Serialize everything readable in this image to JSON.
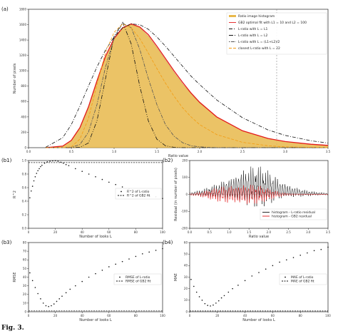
{
  "chart_data": [
    {
      "panel": "(a)",
      "type": "area",
      "xlabel": "Ratio value",
      "ylabel": "Number of pixels",
      "xlim": [
        0.0,
        3.5
      ],
      "ylim": [
        0,
        1800
      ],
      "xticks": [
        "0.0",
        "0.5",
        "1.0",
        "1.5",
        "2.0",
        "2.5",
        "3.0",
        "3.5"
      ],
      "yticks": [
        "0",
        "200",
        "400",
        "600",
        "800",
        "1000",
        "1200",
        "1400",
        "1600",
        "1800"
      ],
      "legend_position": "top-right",
      "vline_x": 2.9,
      "x": [
        0.2,
        0.4,
        0.5,
        0.6,
        0.7,
        0.8,
        0.9,
        1.0,
        1.1,
        1.2,
        1.3,
        1.4,
        1.5,
        1.6,
        1.7,
        1.8,
        1.9,
        2.0,
        2.2,
        2.5,
        2.8,
        3.0,
        3.3,
        3.5
      ],
      "series": [
        {
          "name": "Ratio image histogram",
          "role": "histogram",
          "color": "#e8b84b",
          "values": [
            0,
            20,
            90,
            250,
            520,
            860,
            1180,
            1420,
            1560,
            1600,
            1560,
            1450,
            1300,
            1140,
            980,
            830,
            700,
            580,
            400,
            220,
            120,
            80,
            45,
            30
          ]
        },
        {
          "name": "GB2 optimal fit with L1 = 10 and L2 = 100",
          "color": "#e31a1c",
          "dash": "solid",
          "values": [
            0,
            20,
            95,
            260,
            530,
            870,
            1190,
            1420,
            1560,
            1610,
            1570,
            1470,
            1320,
            1160,
            1000,
            850,
            710,
            590,
            400,
            220,
            120,
            80,
            45,
            30
          ]
        },
        {
          "name": "L-ratio with L = L1",
          "color": "#111111",
          "dash": "dashdot",
          "values": [
            5,
            130,
            300,
            540,
            800,
            1050,
            1270,
            1440,
            1560,
            1610,
            1600,
            1540,
            1440,
            1320,
            1190,
            1060,
            930,
            820,
            620,
            390,
            230,
            160,
            90,
            60
          ]
        },
        {
          "name": "L-ratio with L = L2",
          "color": "#111111",
          "dash": "dashdot2",
          "values": [
            0,
            0,
            0,
            5,
            60,
            350,
            900,
            1450,
            1630,
            1350,
            800,
            350,
            110,
            25,
            5,
            0,
            0,
            0,
            0,
            0,
            0,
            0,
            0,
            0
          ]
        },
        {
          "name": "L-ratio with L = (L1+L2)/2",
          "color": "#555555",
          "dash": "dotdash",
          "values": [
            0,
            0,
            5,
            40,
            200,
            560,
            1050,
            1420,
            1620,
            1560,
            1280,
            900,
            560,
            300,
            150,
            65,
            25,
            10,
            0,
            0,
            0,
            0,
            0,
            0
          ]
        },
        {
          "name": "closest L-ratio with L = 22",
          "color": "#f39c12",
          "dash": "dash",
          "values": [
            0,
            0,
            10,
            110,
            380,
            820,
            1240,
            1500,
            1610,
            1560,
            1420,
            1230,
            1030,
            840,
            670,
            520,
            400,
            300,
            170,
            70,
            25,
            10,
            5,
            0
          ]
        }
      ]
    },
    {
      "panel": "(b1)",
      "type": "scatter",
      "xlabel": "Number of looks L",
      "ylabel": "R^2",
      "xlim": [
        0,
        100
      ],
      "ylim": [
        0.0,
        1.0
      ],
      "xticks": [
        "0",
        "20",
        "40",
        "60",
        "80",
        "100"
      ],
      "yticks": [
        "0.0",
        "0.2",
        "0.4",
        "0.6",
        "0.8",
        "1.0"
      ],
      "legend_position": "center-right",
      "series": [
        {
          "name": "R^2 of L-ratio",
          "marker": "dot",
          "color": "#111111",
          "x": [
            1,
            2,
            3,
            4,
            5,
            6,
            7,
            8,
            9,
            10,
            12,
            14,
            16,
            18,
            20,
            22,
            24,
            26,
            28,
            30,
            35,
            40,
            45,
            50,
            55,
            60,
            65,
            70,
            75,
            80,
            85,
            90,
            95,
            100
          ],
          "values": [
            0.45,
            0.55,
            0.62,
            0.7,
            0.76,
            0.81,
            0.85,
            0.88,
            0.91,
            0.93,
            0.96,
            0.98,
            0.99,
            0.995,
            0.998,
            0.99,
            0.975,
            0.96,
            0.94,
            0.925,
            0.88,
            0.84,
            0.8,
            0.76,
            0.72,
            0.68,
            0.645,
            0.61,
            0.58,
            0.55,
            0.52,
            0.49,
            0.465,
            0.44
          ]
        },
        {
          "name": "R^2 of GB2 fit",
          "marker": "dashed-line",
          "color": "#111111",
          "constant": 0.97
        }
      ]
    },
    {
      "panel": "(b2)",
      "type": "line",
      "xlabel": "Ratio value",
      "ylabel": "Residual (in number of pixels)",
      "xlim": [
        0.0,
        3.5
      ],
      "ylim": [
        -200,
        200
      ],
      "xticks": [
        "0.0",
        "0.5",
        "1.0",
        "1.5",
        "2.0",
        "2.5",
        "3.0",
        "3.5"
      ],
      "yticks": [
        "-200",
        "-100",
        "0",
        "100",
        "200"
      ],
      "legend_position": "lower-right",
      "series": [
        {
          "name": "histogram - L-ratio residual",
          "color": "#111111"
        },
        {
          "name": "histogram - GB2 residual",
          "color": "#e31a1c"
        }
      ]
    },
    {
      "panel": "(b3)",
      "type": "scatter",
      "xlabel": "Number of looks L",
      "ylabel": "RMSE",
      "xlim": [
        0,
        100
      ],
      "ylim": [
        0,
        80
      ],
      "xticks": [
        "0",
        "20",
        "40",
        "60",
        "80",
        "100"
      ],
      "yticks": [
        "0",
        "10",
        "20",
        "30",
        "40",
        "50",
        "60",
        "70",
        "80"
      ],
      "legend_position": "center-right",
      "series": [
        {
          "name": "RMSE of L-ratio",
          "marker": "dot",
          "color": "#111111",
          "x": [
            1,
            3,
            5,
            7,
            9,
            11,
            13,
            15,
            17,
            19,
            21,
            23,
            25,
            28,
            31,
            35,
            40,
            45,
            50,
            55,
            60,
            65,
            70,
            75,
            80,
            85,
            90,
            95,
            100
          ],
          "values": [
            45,
            36,
            28,
            21,
            15,
            10,
            7,
            6,
            7,
            9,
            12,
            15,
            18,
            22,
            26,
            30,
            35,
            40,
            44,
            48,
            52,
            55,
            58,
            61,
            64,
            67,
            69,
            71,
            73
          ]
        },
        {
          "name": "RMSE of GB2 fit",
          "marker": "dashed-line",
          "color": "#111111",
          "constant": 1
        }
      ]
    },
    {
      "panel": "(b4)",
      "type": "scatter",
      "xlabel": "Number of looks L",
      "ylabel": "MAE",
      "xlim": [
        0,
        100
      ],
      "ylim": [
        0,
        60
      ],
      "xticks": [
        "0",
        "20",
        "40",
        "60",
        "80",
        "100"
      ],
      "yticks": [
        "0",
        "10",
        "20",
        "30",
        "40",
        "50",
        "60"
      ],
      "legend_position": "center-right",
      "series": [
        {
          "name": "MAE of L-ratio",
          "marker": "dot",
          "color": "#111111",
          "x": [
            1,
            3,
            5,
            7,
            9,
            11,
            13,
            15,
            17,
            19,
            21,
            23,
            25,
            28,
            31,
            35,
            40,
            45,
            50,
            55,
            60,
            65,
            70,
            75,
            80,
            85,
            90,
            95,
            100
          ],
          "values": [
            28,
            22,
            17,
            13,
            10,
            7,
            5.5,
            5,
            5.8,
            7.5,
            9.5,
            12,
            14,
            17,
            20,
            23,
            27,
            31,
            34,
            37,
            40,
            43,
            45,
            47,
            49,
            51,
            53,
            54,
            56
          ]
        },
        {
          "name": "MAE of GB2 fit",
          "marker": "dashed-line",
          "color": "#111111",
          "constant": 0.7
        }
      ]
    }
  ],
  "caption": "Fig. 3."
}
